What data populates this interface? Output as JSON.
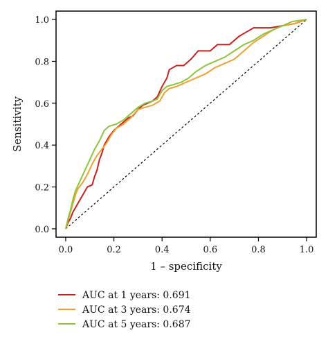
{
  "chart_data": {
    "type": "line",
    "title": "",
    "xlabel": "1 – specificity",
    "ylabel": "Sensitivity",
    "xlim": [
      -0.04,
      1.04
    ],
    "ylim": [
      -0.04,
      1.04
    ],
    "x_ticks": [
      "0.0",
      "0.2",
      "0.4",
      "0.6",
      "0.8",
      "1.0"
    ],
    "y_ticks": [
      "0.0",
      "0.2",
      "0.4",
      "0.6",
      "0.8",
      "1.0"
    ],
    "grid": false,
    "legend_position": "bottom-left, below plot",
    "reference_line": {
      "style": "dashed",
      "color": "#000000",
      "from": [
        0,
        0
      ],
      "to": [
        1,
        1
      ]
    },
    "series": [
      {
        "name": "AUC at 1 years: 0.691",
        "color": "#c8201d",
        "points": [
          [
            0,
            0
          ],
          [
            0.01,
            0.03
          ],
          [
            0.02,
            0.05
          ],
          [
            0.03,
            0.08
          ],
          [
            0.04,
            0.1
          ],
          [
            0.05,
            0.12
          ],
          [
            0.06,
            0.14
          ],
          [
            0.07,
            0.16
          ],
          [
            0.08,
            0.18
          ],
          [
            0.09,
            0.2
          ],
          [
            0.11,
            0.21
          ],
          [
            0.12,
            0.25
          ],
          [
            0.13,
            0.28
          ],
          [
            0.14,
            0.33
          ],
          [
            0.15,
            0.36
          ],
          [
            0.16,
            0.4
          ],
          [
            0.18,
            0.44
          ],
          [
            0.2,
            0.47
          ],
          [
            0.22,
            0.49
          ],
          [
            0.24,
            0.51
          ],
          [
            0.26,
            0.53
          ],
          [
            0.28,
            0.54
          ],
          [
            0.3,
            0.57
          ],
          [
            0.32,
            0.59
          ],
          [
            0.34,
            0.6
          ],
          [
            0.36,
            0.61
          ],
          [
            0.38,
            0.63
          ],
          [
            0.4,
            0.68
          ],
          [
            0.42,
            0.72
          ],
          [
            0.43,
            0.76
          ],
          [
            0.46,
            0.78
          ],
          [
            0.49,
            0.78
          ],
          [
            0.52,
            0.81
          ],
          [
            0.55,
            0.85
          ],
          [
            0.6,
            0.85
          ],
          [
            0.63,
            0.88
          ],
          [
            0.68,
            0.88
          ],
          [
            0.72,
            0.92
          ],
          [
            0.75,
            0.94
          ],
          [
            0.78,
            0.96
          ],
          [
            0.85,
            0.96
          ],
          [
            0.9,
            0.97
          ],
          [
            0.95,
            0.98
          ],
          [
            1.0,
            1.0
          ]
        ]
      },
      {
        "name": "AUC at 3 years: 0.674",
        "color": "#f0a030",
        "points": [
          [
            0,
            0
          ],
          [
            0.01,
            0.04
          ],
          [
            0.02,
            0.08
          ],
          [
            0.03,
            0.12
          ],
          [
            0.04,
            0.16
          ],
          [
            0.05,
            0.19
          ],
          [
            0.07,
            0.22
          ],
          [
            0.09,
            0.26
          ],
          [
            0.11,
            0.31
          ],
          [
            0.13,
            0.35
          ],
          [
            0.15,
            0.38
          ],
          [
            0.17,
            0.41
          ],
          [
            0.19,
            0.45
          ],
          [
            0.21,
            0.48
          ],
          [
            0.24,
            0.5
          ],
          [
            0.27,
            0.53
          ],
          [
            0.3,
            0.57
          ],
          [
            0.33,
            0.58
          ],
          [
            0.36,
            0.59
          ],
          [
            0.39,
            0.61
          ],
          [
            0.41,
            0.65
          ],
          [
            0.43,
            0.67
          ],
          [
            0.46,
            0.68
          ],
          [
            0.5,
            0.7
          ],
          [
            0.54,
            0.72
          ],
          [
            0.58,
            0.74
          ],
          [
            0.62,
            0.77
          ],
          [
            0.66,
            0.79
          ],
          [
            0.7,
            0.81
          ],
          [
            0.74,
            0.85
          ],
          [
            0.78,
            0.89
          ],
          [
            0.82,
            0.92
          ],
          [
            0.86,
            0.95
          ],
          [
            0.9,
            0.97
          ],
          [
            0.95,
            0.98
          ],
          [
            1.0,
            1.0
          ]
        ]
      },
      {
        "name": "AUC at 5 years: 0.687",
        "color": "#8cc43c",
        "points": [
          [
            0,
            0
          ],
          [
            0.01,
            0.05
          ],
          [
            0.02,
            0.09
          ],
          [
            0.03,
            0.14
          ],
          [
            0.04,
            0.18
          ],
          [
            0.06,
            0.23
          ],
          [
            0.08,
            0.28
          ],
          [
            0.1,
            0.33
          ],
          [
            0.12,
            0.38
          ],
          [
            0.14,
            0.42
          ],
          [
            0.16,
            0.47
          ],
          [
            0.18,
            0.49
          ],
          [
            0.21,
            0.5
          ],
          [
            0.24,
            0.52
          ],
          [
            0.27,
            0.55
          ],
          [
            0.3,
            0.58
          ],
          [
            0.33,
            0.6
          ],
          [
            0.36,
            0.61
          ],
          [
            0.38,
            0.62
          ],
          [
            0.4,
            0.66
          ],
          [
            0.42,
            0.68
          ],
          [
            0.45,
            0.69
          ],
          [
            0.48,
            0.7
          ],
          [
            0.51,
            0.72
          ],
          [
            0.54,
            0.75
          ],
          [
            0.58,
            0.78
          ],
          [
            0.62,
            0.8
          ],
          [
            0.66,
            0.82
          ],
          [
            0.7,
            0.85
          ],
          [
            0.74,
            0.88
          ],
          [
            0.78,
            0.9
          ],
          [
            0.82,
            0.93
          ],
          [
            0.86,
            0.95
          ],
          [
            0.9,
            0.97
          ],
          [
            0.94,
            0.99
          ],
          [
            1.0,
            1.0
          ]
        ]
      }
    ]
  }
}
